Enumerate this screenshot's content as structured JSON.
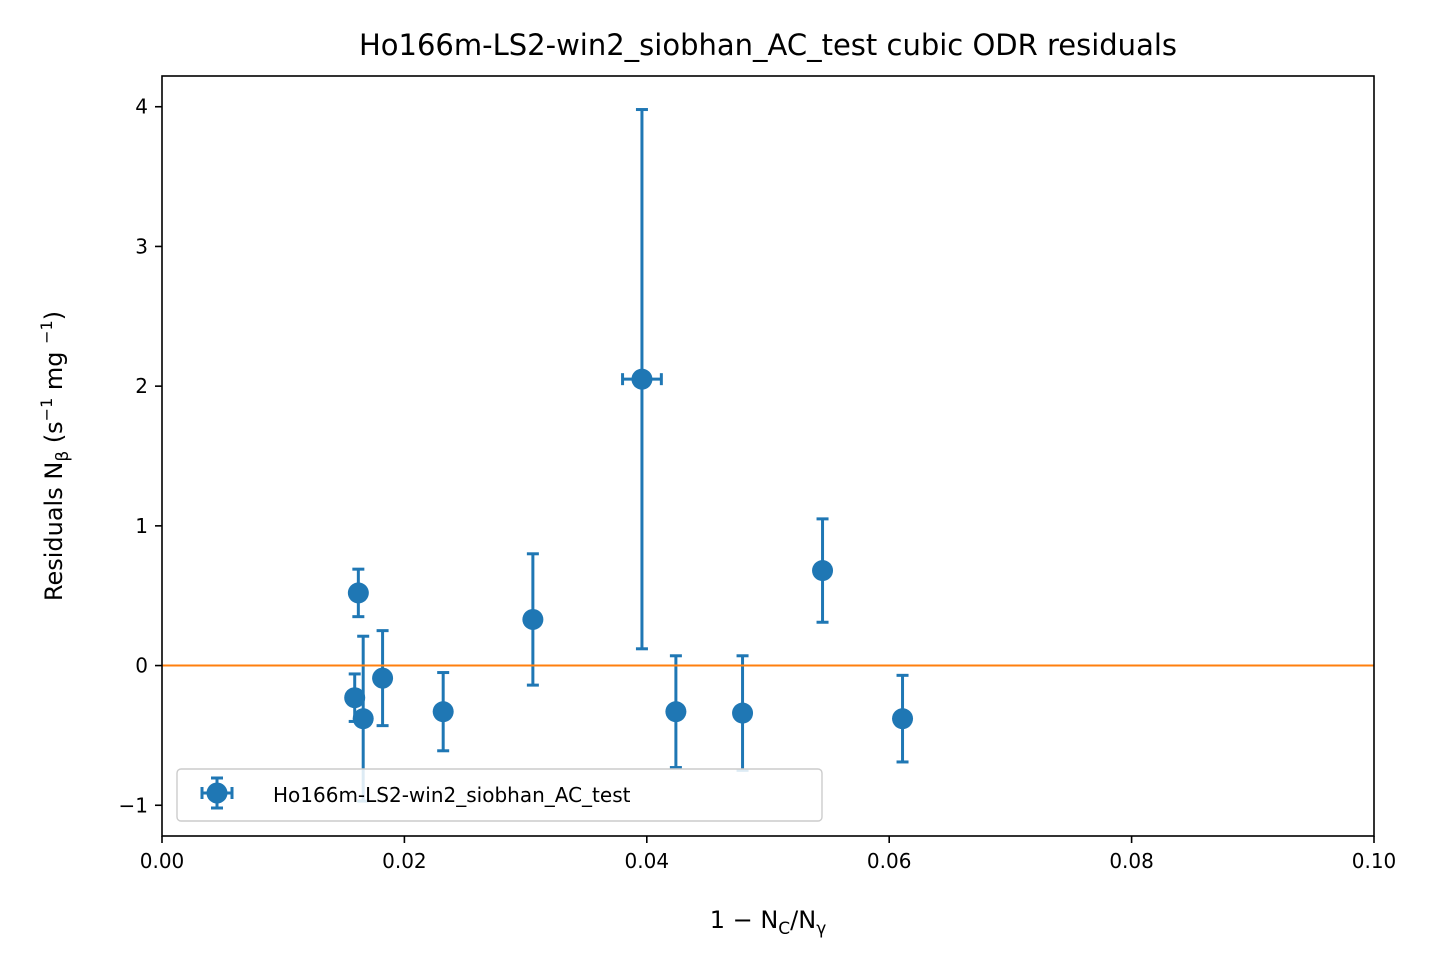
{
  "chart_data": {
    "type": "scatter",
    "title": "Ho166m-LS2-win2_siobhan_AC_test cubic ODR residuals",
    "xlabel": {
      "prefix": "1 − N",
      "sub1": "C",
      "mid": "/N",
      "sub2": "γ"
    },
    "ylabel": {
      "prefix": "Residuals N",
      "sub1": "β",
      "mid1": " (s",
      "sup1": "−1",
      "mid2": " mg ",
      "sup2": "−1",
      "suffix": ")"
    },
    "xlim": [
      0.0,
      0.1
    ],
    "ylim": [
      -1.22,
      4.22
    ],
    "xticks": [
      0.0,
      0.02,
      0.04,
      0.06,
      0.08,
      0.1
    ],
    "xtick_labels": [
      "0.00",
      "0.02",
      "0.04",
      "0.06",
      "0.08",
      "0.10"
    ],
    "yticks": [
      -1,
      0,
      1,
      2,
      3,
      4
    ],
    "ytick_labels": [
      "−1",
      "0",
      "1",
      "2",
      "3",
      "4"
    ],
    "grid": false,
    "legend_placement": "lower-left",
    "series": [
      {
        "name": "Ho166m-LS2-win2_siobhan_AC_test",
        "color": "#1f77b4",
        "points": [
          {
            "x": 0.0159,
            "y": -0.23,
            "yerr": 0.17,
            "xerr": 0.0
          },
          {
            "x": 0.0162,
            "y": 0.52,
            "yerr": 0.17,
            "xerr": 0.0
          },
          {
            "x": 0.0166,
            "y": -0.38,
            "yerr": 0.59,
            "xerr": 0.0
          },
          {
            "x": 0.0182,
            "y": -0.09,
            "yerr": 0.34,
            "xerr": 0.0
          },
          {
            "x": 0.0232,
            "y": -0.33,
            "yerr": 0.28,
            "xerr": 0.0
          },
          {
            "x": 0.0306,
            "y": 0.33,
            "yerr": 0.47,
            "xerr": 0.0
          },
          {
            "x": 0.0396,
            "y": 2.05,
            "yerr": 1.93,
            "xerr": 0.0016
          },
          {
            "x": 0.0424,
            "y": -0.33,
            "yerr": 0.4,
            "xerr": 0.0
          },
          {
            "x": 0.0479,
            "y": -0.34,
            "yerr": 0.41,
            "xerr": 0.0
          },
          {
            "x": 0.0545,
            "y": 0.68,
            "yerr": 0.37,
            "xerr": 0.0
          },
          {
            "x": 0.0611,
            "y": -0.38,
            "yerr": 0.31,
            "xerr": 0.0
          }
        ]
      }
    ],
    "reference_line": {
      "y": 0,
      "color": "#ff7f0e"
    }
  }
}
